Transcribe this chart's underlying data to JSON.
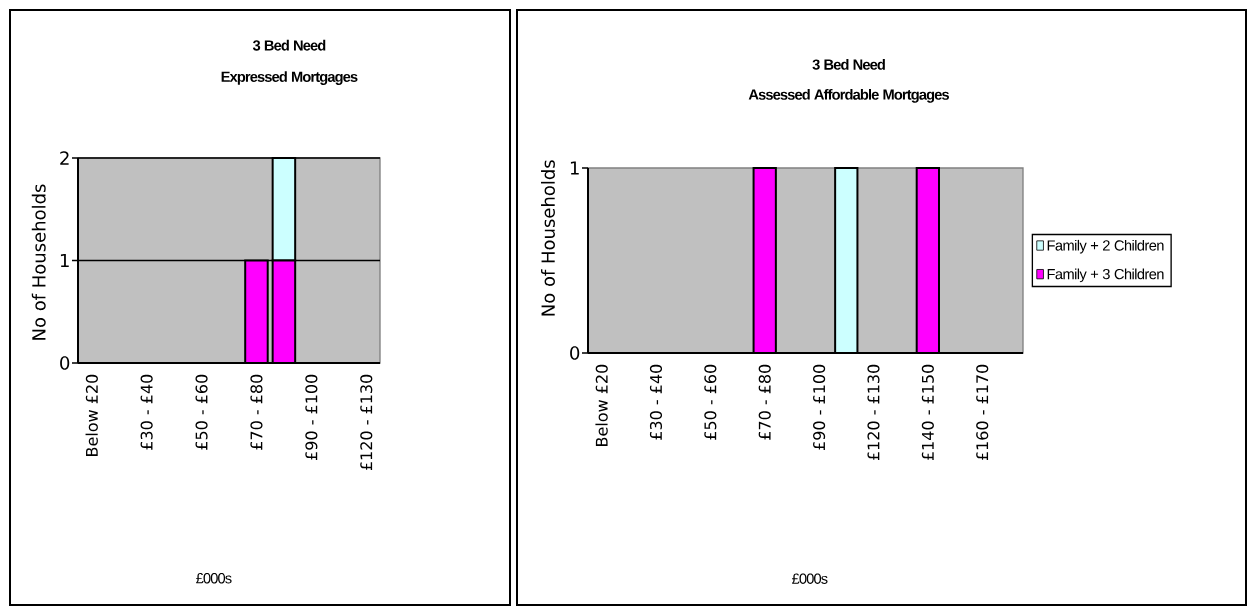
{
  "chart_data": [
    {
      "type": "bar",
      "title": "3 Bed Need",
      "subtitle": "Expressed Mortgages",
      "xlabel": "£000s",
      "ylabel": "No of Households",
      "categories": [
        "Below £20",
        null,
        "£30 - £40",
        null,
        "£50 - £60",
        null,
        "£70 - £80",
        null,
        "£90 - £100",
        null,
        "£120 - £130"
      ],
      "stacked": true,
      "series": [
        {
          "color": "#ff00ff",
          "values": [
            null,
            null,
            null,
            null,
            null,
            null,
            1,
            1,
            null,
            null,
            null
          ]
        },
        {
          "color": "#ccffff",
          "values": [
            null,
            null,
            null,
            null,
            null,
            null,
            null,
            1,
            null,
            null,
            null
          ]
        }
      ],
      "ylim": [
        0,
        2
      ],
      "yticks": [
        0,
        1,
        2
      ],
      "grid": "y"
    },
    {
      "type": "bar",
      "title": "3 Bed Need",
      "subtitle": "Assessed Affordable Mortgages",
      "xlabel": "£000s",
      "ylabel": "No of Households",
      "categories": [
        "Below £20",
        null,
        "£30 - £40",
        null,
        "£50 - £60",
        null,
        "£70 - £80",
        null,
        "£90 - £100",
        null,
        "£120 - £130",
        null,
        "£140 - £150",
        null,
        "£160 - £170",
        null
      ],
      "stacked": true,
      "series": [
        {
          "name": "Family + 2 Children",
          "color": "#ccffff",
          "values": [
            null,
            null,
            null,
            null,
            null,
            null,
            null,
            null,
            null,
            1,
            null,
            null,
            null,
            null,
            null,
            null
          ]
        },
        {
          "name": "Family + 3 Children",
          "color": "#ff00ff",
          "values": [
            null,
            null,
            null,
            null,
            null,
            null,
            1,
            null,
            null,
            null,
            null,
            null,
            1,
            null,
            null,
            null
          ]
        }
      ],
      "ylim": [
        0,
        1
      ],
      "yticks": [
        0,
        1
      ],
      "legend": "right"
    }
  ]
}
